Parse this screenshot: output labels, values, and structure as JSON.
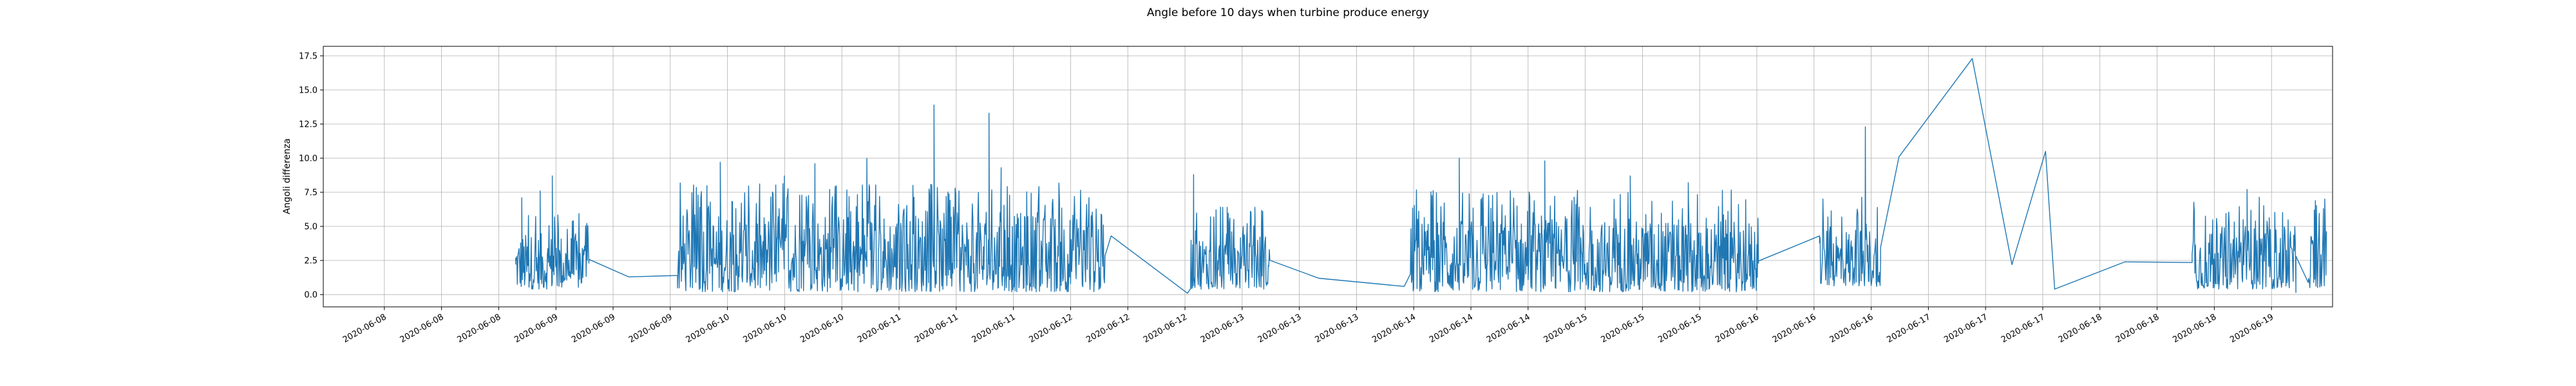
{
  "chart_data": {
    "type": "line",
    "title": "Angle before 10 days when turbine produce energy",
    "xlabel": "",
    "ylabel": "Angoli differenza",
    "ylim": [
      -0.9,
      18.2
    ],
    "xlim": [
      -1.5,
      31.4
    ],
    "grid": true,
    "legend": "none",
    "line_color": "#1f77b4",
    "x_axis_type": "date",
    "x_tick_labels": [
      "2020-06-08",
      "2020-06-08",
      "2020-06-08",
      "2020-06-09",
      "2020-06-09",
      "2020-06-09",
      "2020-06-10",
      "2020-06-10",
      "2020-06-10",
      "2020-06-11",
      "2020-06-11",
      "2020-06-11",
      "2020-06-12",
      "2020-06-12",
      "2020-06-12",
      "2020-06-13",
      "2020-06-13",
      "2020-06-13",
      "2020-06-14",
      "2020-06-14",
      "2020-06-14",
      "2020-06-15",
      "2020-06-15",
      "2020-06-15",
      "2020-06-16",
      "2020-06-16",
      "2020-06-16",
      "2020-06-17",
      "2020-06-17",
      "2020-06-17",
      "2020-06-18",
      "2020-06-18",
      "2020-06-18",
      "2020-06-19"
    ],
    "y_ticks": [
      0.0,
      2.5,
      5.0,
      7.5,
      10.0,
      12.5,
      15.0,
      17.5
    ],
    "y_tick_labels": [
      "0.0",
      "2.5",
      "5.0",
      "7.5",
      "10.0",
      "12.5",
      "15.0",
      "17.5"
    ],
    "anchor_points": [
      {
        "x": 1.65,
        "y": 2.2
      },
      {
        "x": 2.85,
        "y": 2.3
      },
      {
        "x": 3.5,
        "y": 1.3
      },
      {
        "x": 4.3,
        "y": 1.4
      },
      {
        "x": 11.4,
        "y": 4.3
      },
      {
        "x": 12.65,
        "y": 0.1
      },
      {
        "x": 14.8,
        "y": 1.2
      },
      {
        "x": 16.2,
        "y": 0.6
      },
      {
        "x": 22.0,
        "y": 2.3
      },
      {
        "x": 23.0,
        "y": 4.3
      },
      {
        "x": 24.0,
        "y": 2.4
      },
      {
        "x": 24.3,
        "y": 10.1
      },
      {
        "x": 25.5,
        "y": 17.3
      },
      {
        "x": 26.15,
        "y": 2.2
      },
      {
        "x": 26.7,
        "y": 10.5
      },
      {
        "x": 26.85,
        "y": 0.4
      },
      {
        "x": 28.0,
        "y": 2.4
      },
      {
        "x": 29.1,
        "y": 2.35
      },
      {
        "x": 30.8,
        "y": 0.15
      }
    ],
    "dense_segments": [
      {
        "x_start": 1.65,
        "x_end": 2.85,
        "typical_low": 0.4,
        "typical_high": 4.5,
        "peaks": [
          {
            "x": 1.75,
            "y": 7.1
          },
          {
            "x": 2.05,
            "y": 7.6
          },
          {
            "x": 2.25,
            "y": 8.7
          }
        ]
      },
      {
        "x_start": 4.3,
        "x_end": 11.3,
        "typical_low": 0.2,
        "typical_high": 6.0,
        "peaks": [
          {
            "x": 4.8,
            "y": 6.3
          },
          {
            "x": 5.0,
            "y": 9.7
          },
          {
            "x": 6.05,
            "y": 8.7
          },
          {
            "x": 6.55,
            "y": 9.6
          },
          {
            "x": 7.4,
            "y": 10.0
          },
          {
            "x": 8.5,
            "y": 13.9
          },
          {
            "x": 9.4,
            "y": 13.3
          },
          {
            "x": 9.6,
            "y": 9.3
          }
        ]
      },
      {
        "x_start": 12.7,
        "x_end": 14.0,
        "typical_low": 0.4,
        "typical_high": 4.5,
        "peaks": [
          {
            "x": 12.75,
            "y": 8.8
          },
          {
            "x": 13.3,
            "y": 6.4
          }
        ]
      },
      {
        "x_start": 16.3,
        "x_end": 22.0,
        "typical_low": 0.2,
        "typical_high": 5.5,
        "peaks": [
          {
            "x": 17.1,
            "y": 10.0
          },
          {
            "x": 18.5,
            "y": 9.8
          },
          {
            "x": 19.9,
            "y": 8.7
          },
          {
            "x": 20.85,
            "y": 8.2
          }
        ]
      },
      {
        "x_start": 23.0,
        "x_end": 24.0,
        "typical_low": 0.6,
        "typical_high": 5.0,
        "peaks": [
          {
            "x": 23.75,
            "y": 12.3
          }
        ]
      },
      {
        "x_start": 29.1,
        "x_end": 30.8,
        "typical_low": 0.4,
        "typical_high": 5.0,
        "peaks": [
          {
            "x": 30.0,
            "y": 7.7
          }
        ]
      },
      {
        "x_start": 31.0,
        "x_end": 31.3,
        "typical_low": 0.5,
        "typical_high": 5.0,
        "peaks": [
          {
            "x": 31.1,
            "y": 6.2
          },
          {
            "x": 31.25,
            "y": 6.3
          }
        ]
      }
    ]
  }
}
